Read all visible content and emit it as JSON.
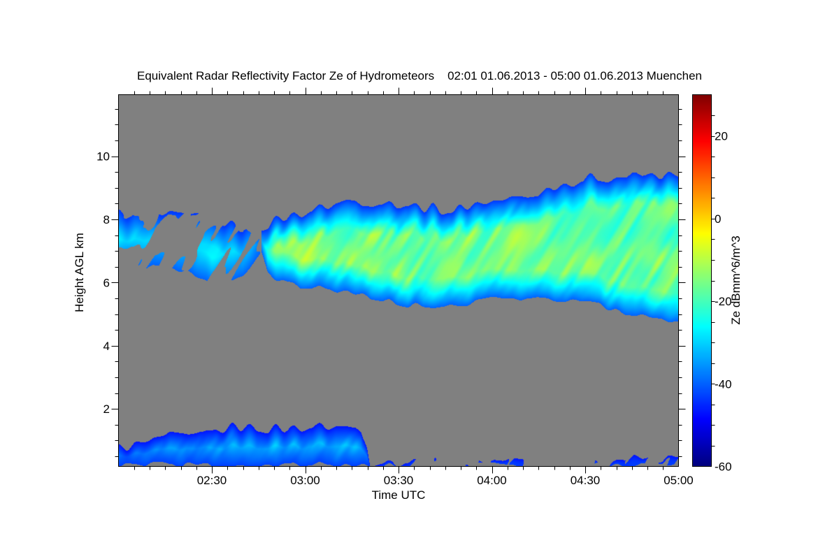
{
  "chart_data": {
    "type": "heatmap",
    "title": "Equivalent Radar Reflectivity Factor Ze of Hydrometeors",
    "period": "02:01 01.06.2013 - 05:00 01.06.2013",
    "location": "Muenchen",
    "xlabel": "Time UTC",
    "ylabel": "Height AGL km",
    "colorbar_label": "Ze dBmm^6/m^3",
    "x_minutes_after_0200_range": [
      0,
      180
    ],
    "ylim_km": [
      0.18,
      11.95
    ],
    "xticks": [
      {
        "min": 30,
        "label": "02:30"
      },
      {
        "min": 60,
        "label": "03:00"
      },
      {
        "min": 90,
        "label": "03:30"
      },
      {
        "min": 120,
        "label": "04:00"
      },
      {
        "min": 150,
        "label": "04:30"
      },
      {
        "min": 180,
        "label": "05:00"
      }
    ],
    "yticks": [
      {
        "km": 2,
        "label": "2"
      },
      {
        "km": 4,
        "label": "4"
      },
      {
        "km": 6,
        "label": "6"
      },
      {
        "km": 8,
        "label": "8"
      },
      {
        "km": 10,
        "label": "10"
      }
    ],
    "colorbar_range": [
      -60,
      30
    ],
    "colorbar_ticks": [
      {
        "v": -60,
        "label": "-60"
      },
      {
        "v": -40,
        "label": "-40"
      },
      {
        "v": -20,
        "label": "-20"
      },
      {
        "v": 0,
        "label": "0"
      },
      {
        "v": 20,
        "label": "20"
      }
    ],
    "colormap": "jet",
    "background_color": "#808080",
    "echo_regions": [
      {
        "name": "upper-cloud-layer",
        "top": [
          [
            46,
            7.75
          ],
          [
            50.6,
            7.95
          ],
          [
            55,
            8.1
          ],
          [
            63,
            8.3
          ],
          [
            74,
            8.6
          ],
          [
            90,
            8.5
          ],
          [
            108,
            8.25
          ],
          [
            114,
            8.5
          ],
          [
            132,
            8.7
          ],
          [
            141,
            9.1
          ],
          [
            152,
            9.3
          ],
          [
            177,
            9.4
          ],
          [
            180,
            9.3
          ]
        ],
        "bottom": [
          [
            46,
            7.0
          ],
          [
            48,
            6.3
          ],
          [
            50.6,
            6.1
          ],
          [
            58,
            5.85
          ],
          [
            74,
            5.7
          ],
          [
            83,
            5.5
          ],
          [
            94,
            5.25
          ],
          [
            110,
            5.25
          ],
          [
            119,
            5.45
          ],
          [
            132,
            5.5
          ],
          [
            150,
            5.4
          ],
          [
            164,
            5.0
          ],
          [
            180,
            4.7
          ]
        ],
        "peak_dbz": -12,
        "edge_dbz": -42
      },
      {
        "name": "low-cloud-layer",
        "top": [
          [
            0,
            0.75
          ],
          [
            10,
            0.9
          ],
          [
            14,
            1.1
          ],
          [
            25,
            1.05
          ],
          [
            28,
            1.2
          ],
          [
            38,
            1.42
          ],
          [
            52,
            1.33
          ],
          [
            58,
            1.4
          ],
          [
            70,
            1.42
          ],
          [
            78,
            1.38
          ],
          [
            80,
            0.9
          ],
          [
            81,
            0.3
          ]
        ],
        "bottom": [
          [
            0,
            0.2
          ],
          [
            81,
            0.2
          ]
        ],
        "peak_dbz": -25,
        "edge_dbz": -45
      },
      {
        "name": "surface-clutter",
        "top": [
          [
            81,
            0.3
          ],
          [
            180,
            0.4
          ]
        ],
        "bottom": [
          [
            81,
            0.2
          ],
          [
            180,
            0.2
          ]
        ],
        "peak_dbz": -40,
        "edge_dbz": -45,
        "sparse": true
      },
      {
        "name": "virga-streaks",
        "top": [
          [
            0,
            8.2
          ],
          [
            30,
            8.0
          ],
          [
            40,
            7.7
          ],
          [
            46,
            7.75
          ]
        ],
        "bottom": [
          [
            0,
            6.5
          ],
          [
            20,
            6.4
          ],
          [
            30,
            5.9
          ],
          [
            40,
            6.2
          ],
          [
            46,
            7.0
          ]
        ],
        "peak_dbz": -28,
        "edge_dbz": -42,
        "sparse": true
      }
    ]
  }
}
